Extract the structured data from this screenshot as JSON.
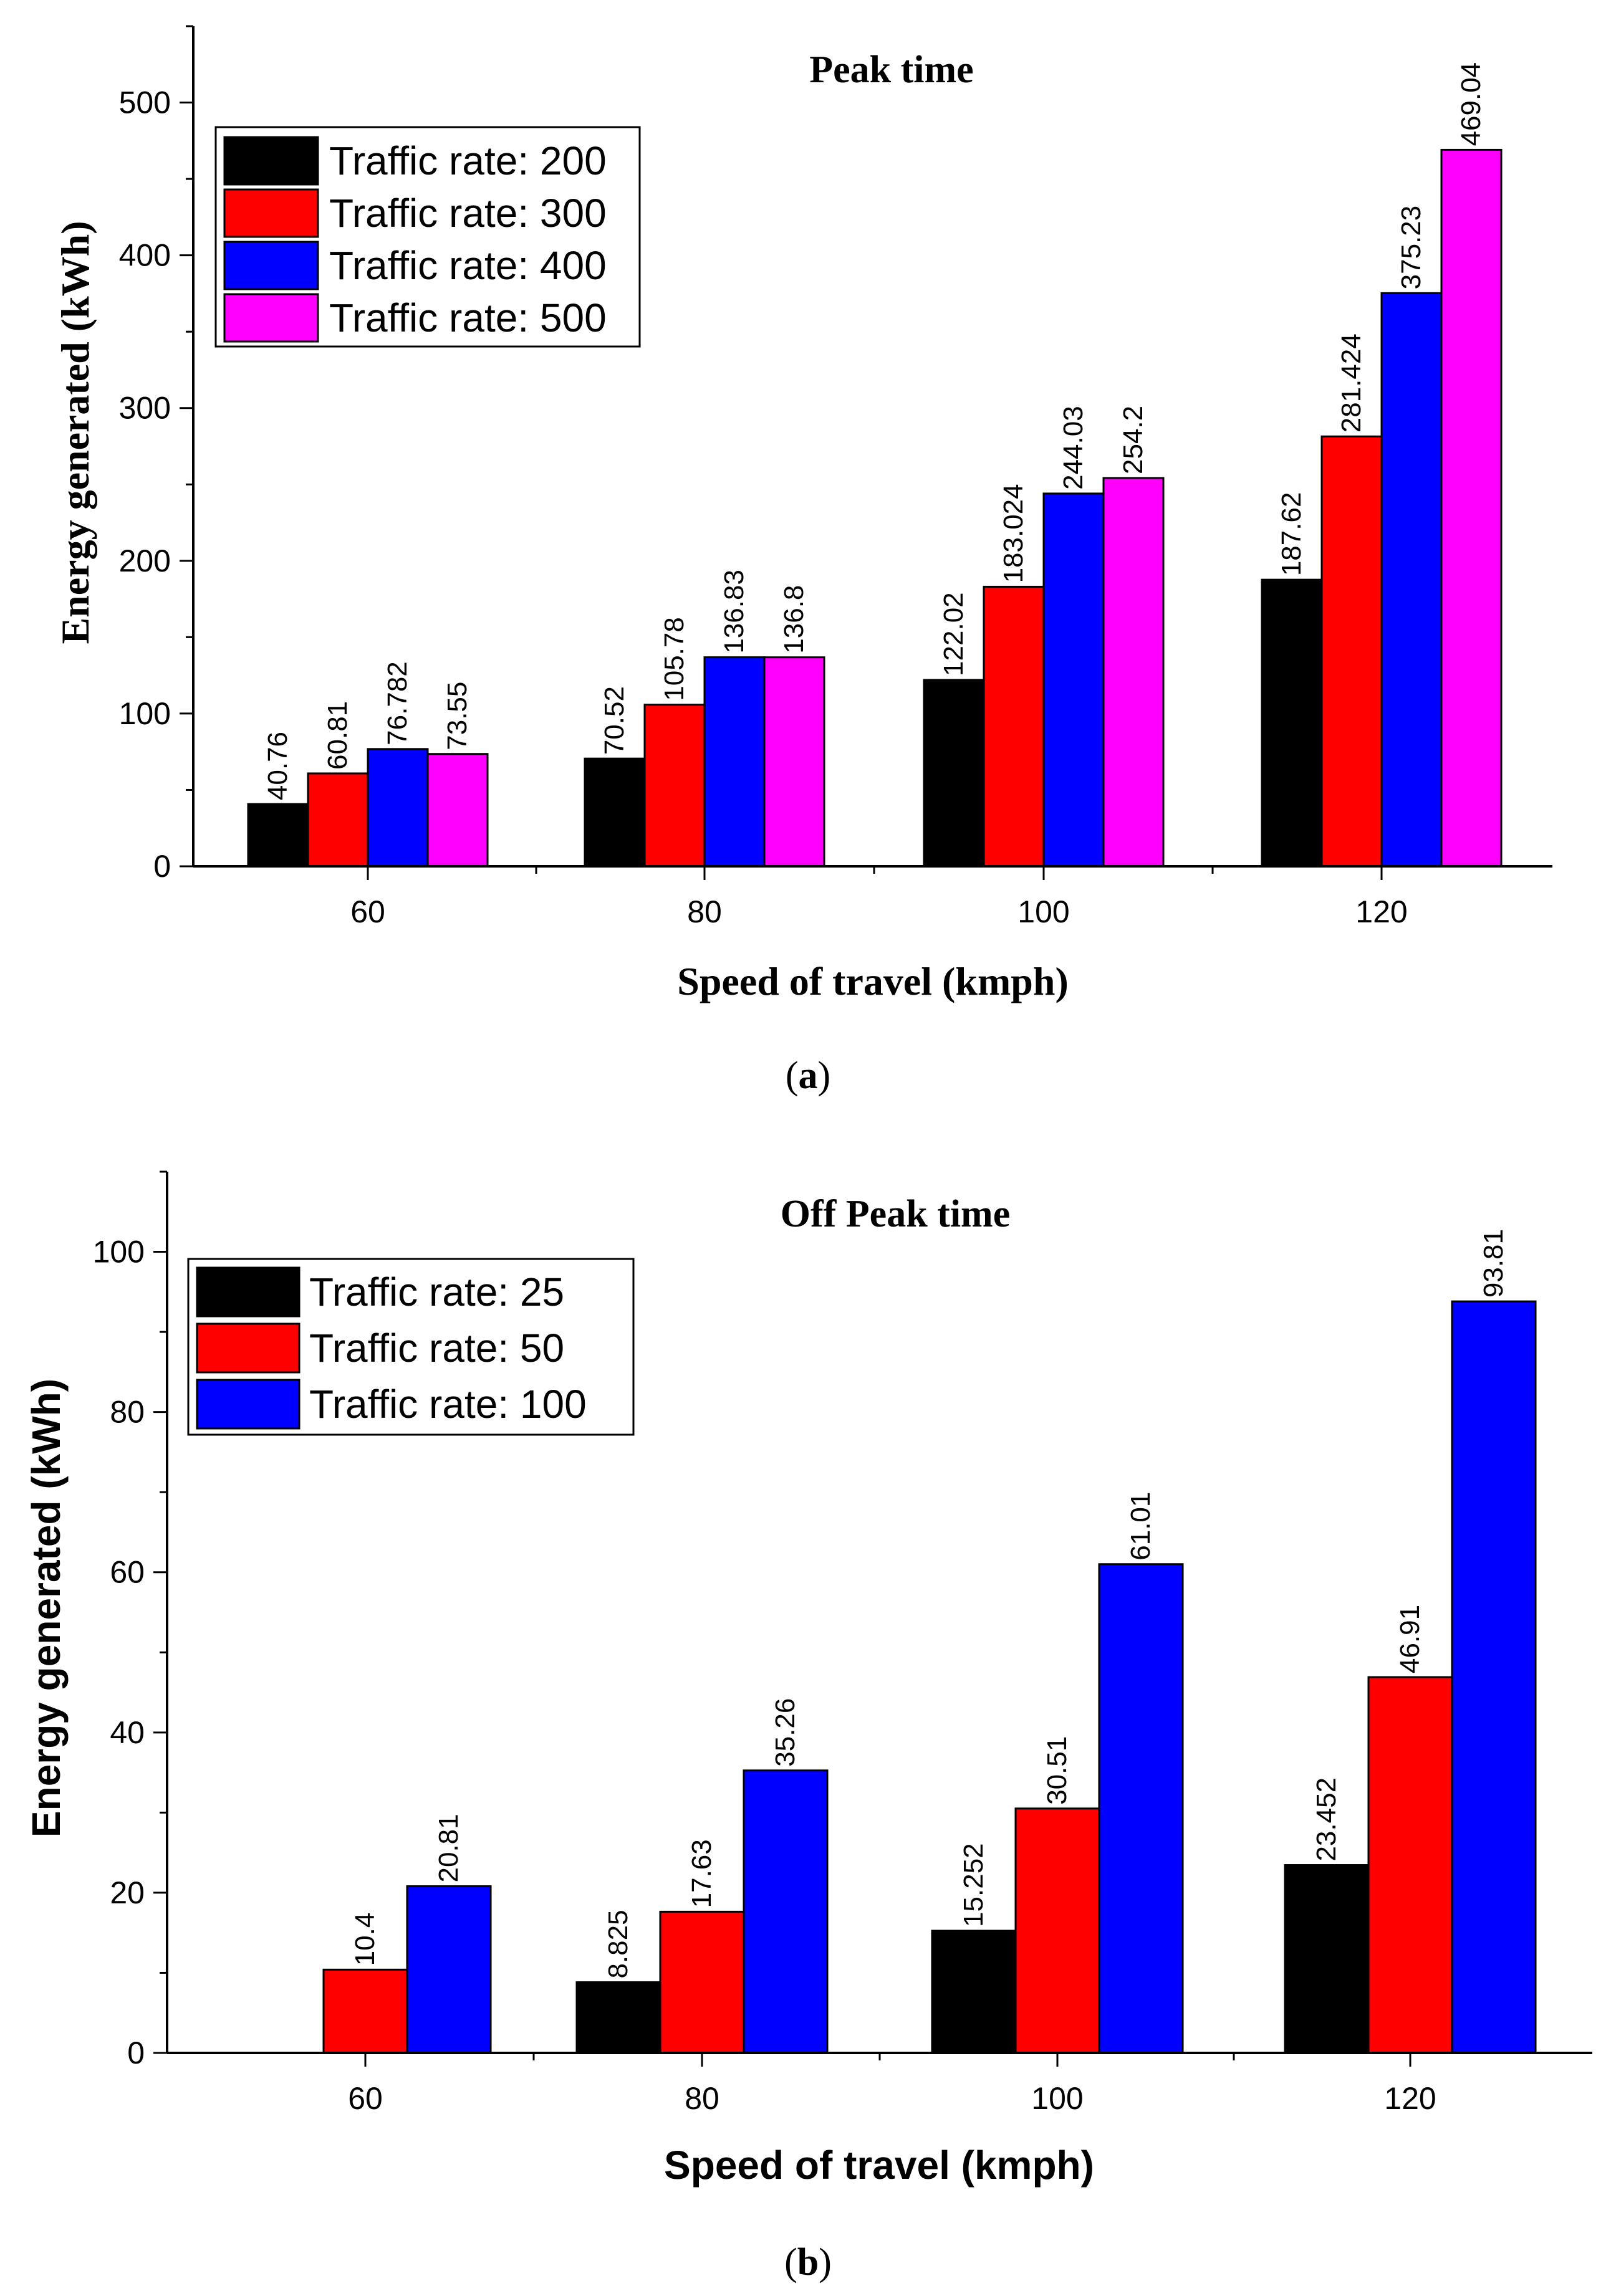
{
  "colors": {
    "black": "#000000",
    "red": "#ff0000",
    "blue": "#0000ff",
    "magenta": "#ff00ff"
  },
  "chart_data": [
    {
      "id": "a",
      "type": "bar",
      "title": "Peak time",
      "xlabel": "Speed of travel (kmph)",
      "ylabel": "Energy generated (kWh)",
      "caption_prefix": "(",
      "caption_letter": "a",
      "caption_suffix": ")",
      "categories": [
        "60",
        "80",
        "100",
        "120"
      ],
      "ylim": [
        0,
        550
      ],
      "yticks": [
        0,
        100,
        200,
        300,
        400,
        500
      ],
      "yticks_labels": [
        "0",
        "100",
        "200",
        "300",
        "400",
        "500"
      ],
      "legend_position": "top-left",
      "series": [
        {
          "name": "Traffic rate: 200",
          "color": "#000000",
          "values": [
            40.76,
            70.52,
            122.02,
            187.62
          ],
          "labels": [
            "40.76",
            "70.52",
            "122.02",
            "187.62"
          ]
        },
        {
          "name": "Traffic rate: 300",
          "color": "#ff0000",
          "values": [
            60.81,
            105.78,
            183.024,
            281.424
          ],
          "labels": [
            "60.81",
            "105.78",
            "183.024",
            "281.424"
          ]
        },
        {
          "name": "Traffic rate: 400",
          "color": "#0000ff",
          "values": [
            76.782,
            136.83,
            244.03,
            375.23
          ],
          "labels": [
            "76.782",
            "136.83",
            "244.03",
            "375.23"
          ]
        },
        {
          "name": "Traffic rate: 500",
          "color": "#ff00ff",
          "values": [
            73.55,
            136.8,
            254.2,
            469.04
          ],
          "labels": [
            "73.55",
            "136.8",
            "254.2",
            "469.04"
          ]
        }
      ]
    },
    {
      "id": "b",
      "type": "bar",
      "title": "Off Peak time",
      "xlabel": "Speed of travel (kmph)",
      "ylabel": "Energy generated (kWh)",
      "caption_prefix": "(",
      "caption_letter": "b",
      "caption_suffix": ")",
      "categories": [
        "60",
        "80",
        "100",
        "120"
      ],
      "ylim": [
        0,
        110
      ],
      "yticks": [
        0,
        20,
        40,
        60,
        80,
        100
      ],
      "yticks_labels": [
        "0",
        "20",
        "40",
        "60",
        "80",
        "100"
      ],
      "legend_position": "top-left",
      "series": [
        {
          "name": "Traffic rate: 25",
          "color": "#000000",
          "values": [
            null,
            8.825,
            15.252,
            23.452
          ],
          "labels": [
            null,
            "8.825",
            "15.252",
            "23.452"
          ]
        },
        {
          "name": "Traffic rate: 50",
          "color": "#ff0000",
          "values": [
            10.4,
            17.63,
            30.51,
            46.91
          ],
          "labels": [
            "10.4",
            "17.63",
            "30.51",
            "46.91"
          ]
        },
        {
          "name": "Traffic rate: 100",
          "color": "#0000ff",
          "values": [
            20.81,
            35.26,
            61.01,
            93.81
          ],
          "labels": [
            "20.81",
            "35.26",
            "61.01",
            "93.81"
          ]
        }
      ]
    }
  ]
}
